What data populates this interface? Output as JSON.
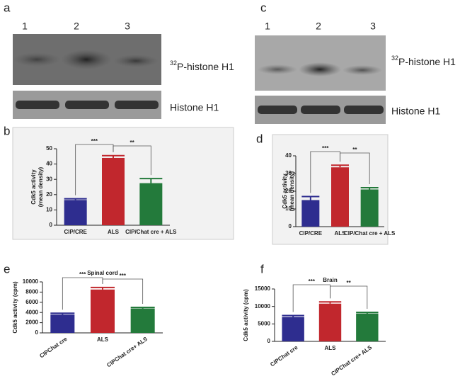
{
  "blots": [
    {
      "panel": "a",
      "lanes": [
        "1",
        "2",
        "3"
      ],
      "label_sup": "32",
      "label": "P-histone H1",
      "loading_label": "Histone H1"
    },
    {
      "panel": "c",
      "lanes": [
        "1",
        "2",
        "3"
      ],
      "label_sup": "32",
      "label": "P-histone H1",
      "loading_label": "Histone H1"
    }
  ],
  "chart_data": [
    {
      "type": "bar",
      "panel": "b",
      "ylabel": [
        "Cdk5 activity",
        "(mean density)"
      ],
      "categories": [
        "CIP/CRE",
        "ALS",
        "CIP/Chat cre + ALS"
      ],
      "values": [
        16.5,
        44,
        27.5
      ],
      "errors": [
        0.8,
        1.5,
        3
      ],
      "colors": [
        "#2e2d8f",
        "#c1272d",
        "#237a3b"
      ],
      "ylim": [
        0,
        50
      ],
      "yticks": [
        0,
        10,
        20,
        30,
        40,
        50
      ],
      "significance": [
        "***",
        "**"
      ],
      "rotate_labels": false
    },
    {
      "type": "bar",
      "panel": "d",
      "ylabel": [
        "Cdk5 activity",
        "(mean density)"
      ],
      "categories": [
        "CIP/CRE",
        "ALS",
        "CIP/Chat cre + ALS"
      ],
      "values": [
        15,
        33.5,
        21
      ],
      "errors": [
        2,
        1.2,
        1
      ],
      "colors": [
        "#2e2d8f",
        "#c1272d",
        "#237a3b"
      ],
      "ylim": [
        0,
        40
      ],
      "yticks": [
        0,
        10,
        20,
        30,
        40
      ],
      "significance": [
        "***",
        "**"
      ],
      "rotate_labels": false
    },
    {
      "type": "bar",
      "panel": "e",
      "title": "Spinal cord",
      "ylabel": [
        "Cdk5 activity (cpm)"
      ],
      "categories": [
        "CIPChat cre",
        "ALS",
        "CIPChat cre+ ALS"
      ],
      "values": [
        3600,
        8500,
        4800
      ],
      "errors": [
        250,
        400,
        200
      ],
      "colors": [
        "#2e2d8f",
        "#c1272d",
        "#237a3b"
      ],
      "ylim": [
        0,
        10000
      ],
      "yticks": [
        0,
        2000,
        4000,
        6000,
        8000,
        10000
      ],
      "significance": [
        "***",
        "***"
      ],
      "rotate_labels": true
    },
    {
      "type": "bar",
      "panel": "f",
      "title": "Brain",
      "ylabel": [
        "Cdk5 activity (cpm)"
      ],
      "categories": [
        "CIPChat cre",
        "ALS",
        "CIPChat cre+ ALS"
      ],
      "values": [
        7000,
        10800,
        8000
      ],
      "errors": [
        400,
        500,
        300
      ],
      "colors": [
        "#2e2d8f",
        "#c1272d",
        "#237a3b"
      ],
      "ylim": [
        0,
        15000
      ],
      "yticks": [
        0,
        5000,
        10000,
        15000
      ],
      "significance": [
        "***",
        "**"
      ],
      "rotate_labels": true
    }
  ]
}
